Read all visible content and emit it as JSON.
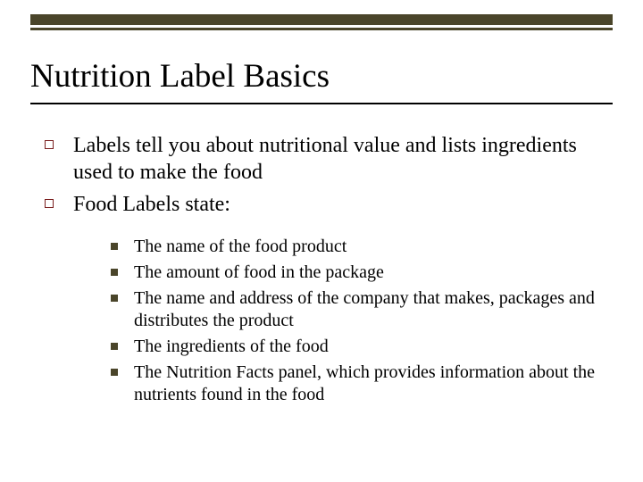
{
  "slide": {
    "title": "Nutrition Label Basics",
    "colors": {
      "top_bar": "#4a452a",
      "lvl1_bullet_border": "#7a1f1f",
      "lvl2_bullet_fill": "#4a452a",
      "background": "#ffffff",
      "text": "#000000",
      "title_underline": "#000000"
    },
    "typography": {
      "title_font": "Times New Roman",
      "title_size_pt": 28,
      "body_font": "Times New Roman",
      "lvl1_size_pt": 18,
      "lvl2_size_pt": 15
    },
    "bullets_lvl1": [
      {
        "text": "Labels tell you about nutritional value and lists ingredients used to make the food"
      },
      {
        "text": "Food Labels state:"
      }
    ],
    "bullets_lvl2": [
      {
        "text": "The name of the food product"
      },
      {
        "text": "The amount of food in the package"
      },
      {
        "text": "The name and address of the company that makes, packages and distributes the product"
      },
      {
        "text": "The ingredients of the food"
      },
      {
        "text": "The Nutrition Facts panel, which provides information about the nutrients found in the food"
      }
    ]
  }
}
